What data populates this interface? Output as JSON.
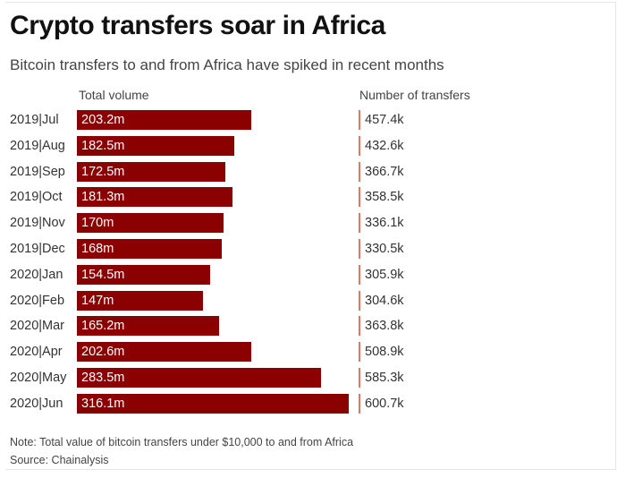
{
  "colors": {
    "bar": "#8b0000",
    "tick": "#e07b5a"
  },
  "chart_data": {
    "type": "bar",
    "orientation": "horizontal",
    "title": "Crypto transfers soar in Africa",
    "subtitle": "Bitcoin transfers to and from Africa have spiked in recent months",
    "columns": {
      "volume_header": "Total volume",
      "transfers_header": "Number of transfers"
    },
    "categories": [
      "2019|Jul",
      "2019|Aug",
      "2019|Sep",
      "2019|Oct",
      "2019|Nov",
      "2019|Dec",
      "2020|Jan",
      "2020|Feb",
      "2020|Mar",
      "2020|Apr",
      "2020|May",
      "2020|Jun"
    ],
    "series": [
      {
        "values": [
          203.2,
          182.5,
          172.5,
          181.3,
          170,
          168,
          154.5,
          147,
          165.2,
          202.6,
          283.5,
          316.1
        ],
        "labels": [
          "203.2m",
          "182.5m",
          "172.5m",
          "181.3m",
          "170m",
          "168m",
          "154.5m",
          "147m",
          "165.2m",
          "202.6m",
          "283.5m",
          "316.1m"
        ]
      },
      {
        "values": [
          457.4,
          432.6,
          366.7,
          358.5,
          336.1,
          330.5,
          305.9,
          304.6,
          363.8,
          508.9,
          585.3,
          600.7
        ],
        "labels": [
          "457.4k",
          "432.6k",
          "366.7k",
          "358.5k",
          "336.1k",
          "330.5k",
          "305.9k",
          "304.6k",
          "363.8k",
          "508.9k",
          "585.3k",
          "600.7k"
        ]
      }
    ],
    "note": "Note: Total value of bitcoin transfers under $10,000 to and from Africa",
    "source": "Source: Chainalysis"
  }
}
